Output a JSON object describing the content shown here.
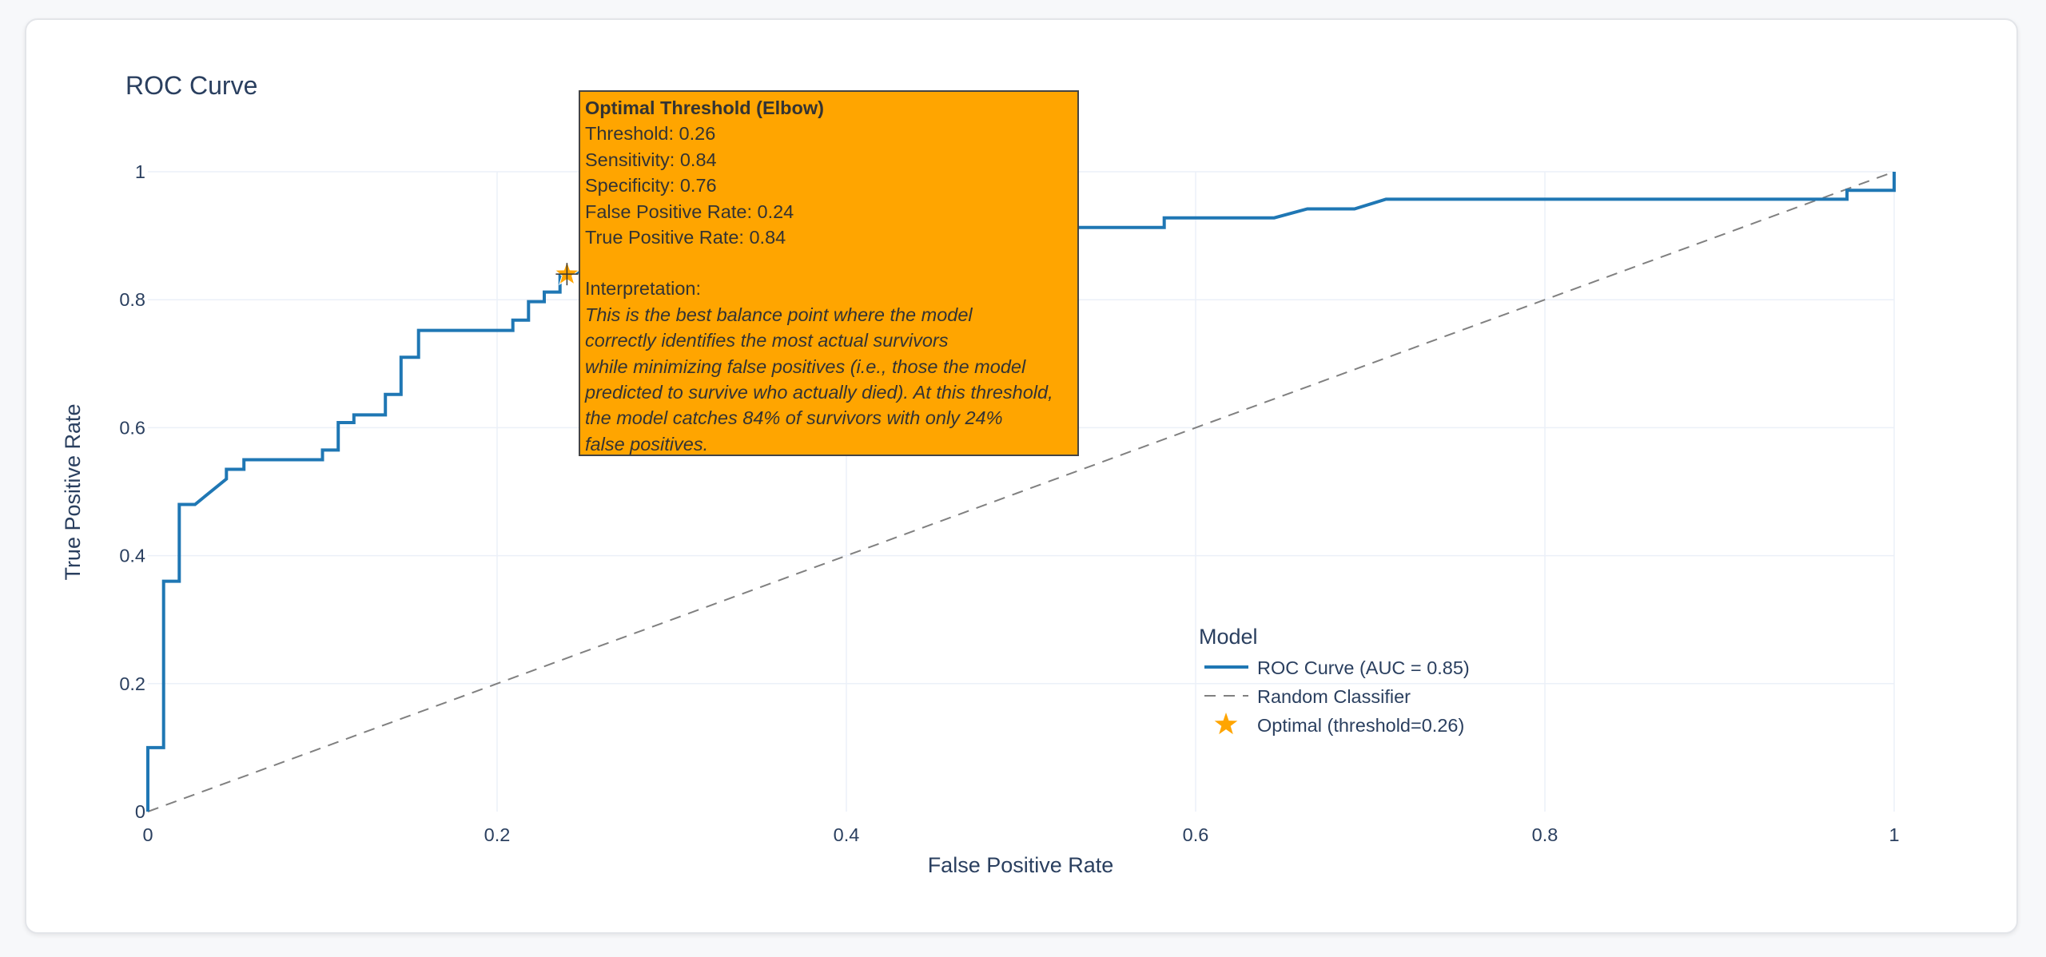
{
  "chart_data": {
    "type": "line",
    "title": "ROC Curve",
    "xlabel": "False Positive Rate",
    "ylabel": "True Positive Rate",
    "xlim": [
      0,
      1
    ],
    "ylim": [
      0,
      1
    ],
    "x_ticks": [
      "0",
      "0.2",
      "0.4",
      "0.6",
      "0.8",
      "1"
    ],
    "y_ticks": [
      "0",
      "0.2",
      "0.4",
      "0.6",
      "0.8",
      "1"
    ],
    "grid": true,
    "legend": {
      "title": "Model",
      "placement": "bottom-right",
      "entries": [
        "ROC Curve (AUC = 0.85)",
        "Random Classifier",
        "Optimal (threshold=0.26)"
      ]
    },
    "series": [
      {
        "name": "ROC Curve (AUC = 0.85)",
        "color": "#1f77b4",
        "style": "solid",
        "x": [
          0,
          0,
          0.009,
          0.009,
          0.018,
          0.018,
          0.027,
          0.045,
          0.045,
          0.055,
          0.055,
          0.1,
          0.1,
          0.109,
          0.109,
          0.118,
          0.118,
          0.136,
          0.136,
          0.145,
          0.145,
          0.155,
          0.155,
          0.209,
          0.209,
          0.218,
          0.218,
          0.227,
          0.227,
          0.236,
          0.236,
          0.3,
          0.35,
          0.4,
          0.45,
          0.5,
          0.5,
          0.527,
          0.527,
          0.545,
          0.545,
          0.582,
          0.582,
          0.645,
          0.664,
          0.691,
          0.709,
          0.709,
          0.973,
          0.973,
          1,
          1
        ],
        "y": [
          0,
          0.1,
          0.1,
          0.36,
          0.36,
          0.48,
          0.48,
          0.52,
          0.535,
          0.535,
          0.55,
          0.55,
          0.565,
          0.565,
          0.608,
          0.608,
          0.62,
          0.62,
          0.652,
          0.652,
          0.71,
          0.71,
          0.752,
          0.752,
          0.768,
          0.768,
          0.797,
          0.797,
          0.812,
          0.812,
          0.84,
          0.86,
          0.87,
          0.88,
          0.89,
          0.89,
          0.9,
          0.9,
          0.913,
          0.913,
          0.913,
          0.913,
          0.928,
          0.928,
          0.942,
          0.942,
          0.957,
          0.957,
          0.957,
          0.971,
          0.971,
          1
        ]
      },
      {
        "name": "Random Classifier",
        "color": "#808080",
        "style": "dash",
        "x": [
          0,
          1
        ],
        "y": [
          0,
          1
        ]
      },
      {
        "name": "Optimal (threshold=0.26)",
        "color": "#ffa500",
        "marker": "star",
        "x": [
          0.24
        ],
        "y": [
          0.84
        ]
      }
    ],
    "tooltip": {
      "title": "Optimal Threshold (Elbow)",
      "lines": [
        "Threshold: 0.26",
        "Sensitivity: 0.84",
        "Specificity: 0.76",
        "False Positive Rate: 0.24",
        "True Positive Rate: 0.84"
      ],
      "interp_label": "Interpretation:",
      "interp_lines": [
        "This is the best balance point where the model",
        "correctly identifies the most actual survivors",
        "while minimizing false positives (i.e., those the model",
        "predicted to survive who actually died). At this threshold,",
        "the model catches 84% of survivors with only 24%",
        "false positives."
      ]
    }
  }
}
